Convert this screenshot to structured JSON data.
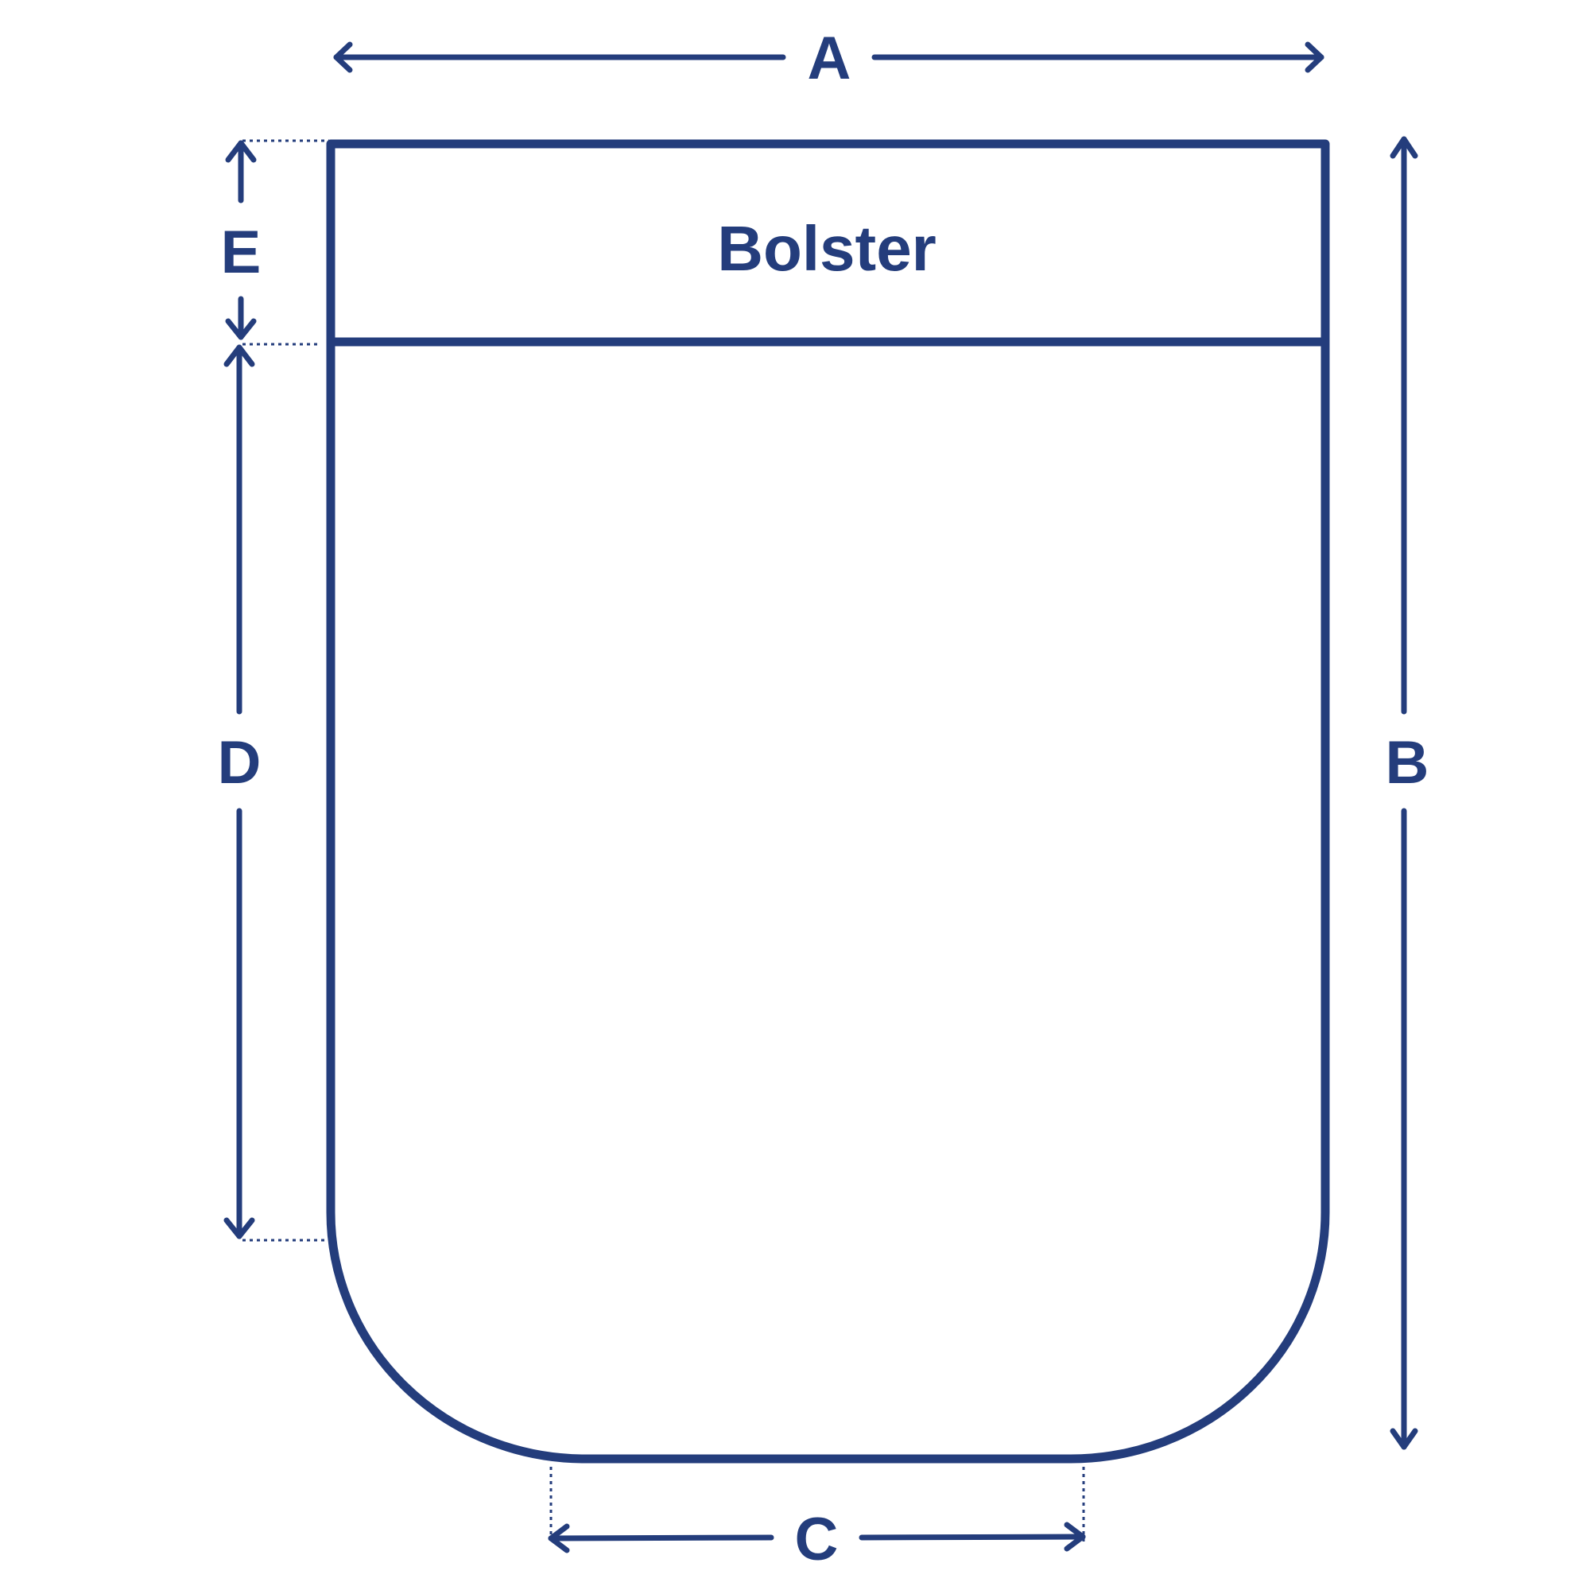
{
  "diagram": {
    "title": "Bolster",
    "color": "#243d7c",
    "dimensions": {
      "a": "A",
      "b": "B",
      "c": "C",
      "d": "D",
      "e": "E"
    }
  }
}
